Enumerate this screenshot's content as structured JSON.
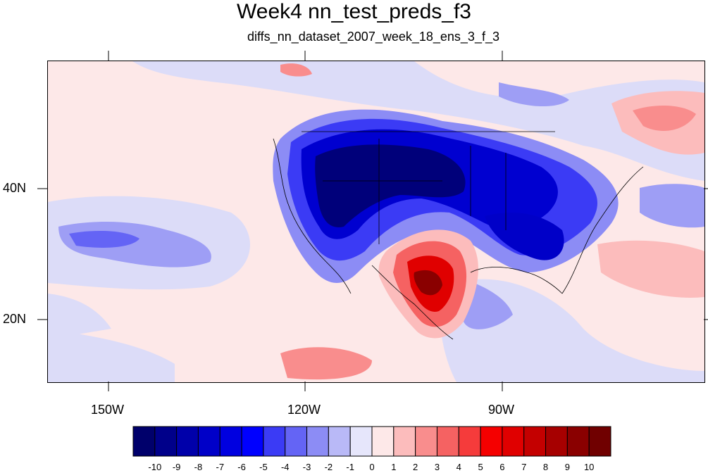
{
  "title": "Week4 nn_test_preds_f3",
  "subtitle": "diffs_nn_dataset_2007_week_18_ens_3_f_3",
  "lat_labels": [
    "40N",
    "20N"
  ],
  "lon_labels": [
    "150W",
    "120W",
    "90W"
  ],
  "colorbar": {
    "labels": [
      "-10",
      "-9",
      "-8",
      "-7",
      "-6",
      "-5",
      "-4",
      "-3",
      "-2",
      "-1",
      "0",
      "1",
      "2",
      "3",
      "4",
      "5",
      "6",
      "7",
      "8",
      "9",
      "10"
    ],
    "colors": [
      "#00006b",
      "#00008a",
      "#0000aa",
      "#0000c8",
      "#0000e0",
      "#0000ff",
      "#3b3bf5",
      "#6464f5",
      "#8c8cf5",
      "#b9b9f7",
      "#e6e6fb",
      "#fde8e8",
      "#fcbcbc",
      "#f98d8d",
      "#f56262",
      "#f53b3b",
      "#f50000",
      "#e00000",
      "#c40000",
      "#a60000",
      "#8a0000",
      "#700000"
    ]
  },
  "map_colors": {
    "ocean_neutral": "#fde8e8",
    "light_blue": "#dcdcf8",
    "mid_blue": "#9e9ef5",
    "deep_blue": "#2c2cd8",
    "darkest_blue": "#00008a",
    "light_red": "#fcbcbc",
    "mid_red": "#f56262",
    "dark_red": "#c40000"
  }
}
